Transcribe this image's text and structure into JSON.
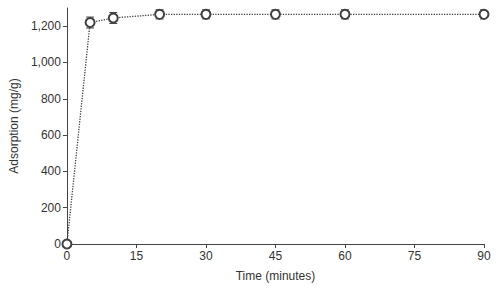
{
  "chart_data": {
    "type": "line",
    "x_label": "Time (minutes)",
    "y_label": "Adsorption (mg/g)",
    "x": [
      0,
      5,
      10,
      20,
      30,
      45,
      60,
      90
    ],
    "values": [
      0,
      1220,
      1245,
      1265,
      1265,
      1265,
      1265,
      1265
    ],
    "errors": [
      0,
      30,
      30,
      25,
      25,
      25,
      25,
      25
    ],
    "color": "#404040",
    "marker": "open_circle",
    "line_style": "dotted",
    "xlim": [
      0,
      90
    ],
    "xticks": [
      0,
      15,
      30,
      45,
      60,
      75,
      90
    ],
    "ylim": [
      0,
      1300
    ],
    "yticks": [
      0,
      200,
      400,
      600,
      800,
      1000,
      1200
    ],
    "grid": false
  }
}
